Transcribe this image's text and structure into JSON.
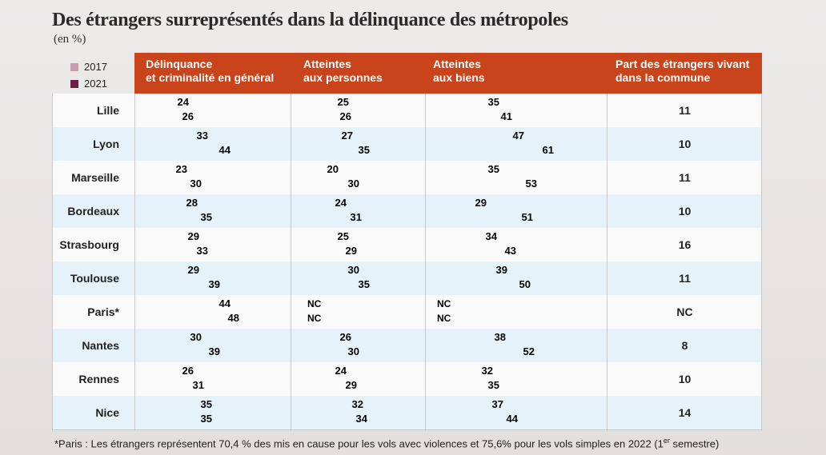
{
  "title": "Des étrangers surreprésentés dans la délinquance des métropoles",
  "subtitle": "(en %)",
  "colors": {
    "y2017": "#c89bb1",
    "y2021": "#6b1f42",
    "header": "#c9431b"
  },
  "legend": [
    "2017",
    "2021"
  ],
  "headers": [
    "Délinquance\net criminalité en général",
    "Atteintes\naux personnes",
    "Atteintes\naux biens",
    "Part des étrangers vivant\ndans la commune"
  ],
  "chart_data": {
    "type": "bar",
    "title": "Des étrangers surreprésentés dans la délinquance des métropoles",
    "unit": "%",
    "series_names": [
      "2017",
      "2021"
    ],
    "categories": [
      "Lille",
      "Lyon",
      "Marseille",
      "Bordeaux",
      "Strasbourg",
      "Toulouse",
      "Paris*",
      "Nantes",
      "Rennes",
      "Nice"
    ],
    "groups": [
      {
        "name": "Délinquance et criminalité en général",
        "y2017": [
          24,
          33,
          23,
          28,
          29,
          29,
          44,
          30,
          26,
          35
        ],
        "y2021": [
          26,
          44,
          30,
          35,
          33,
          39,
          48,
          39,
          31,
          35
        ]
      },
      {
        "name": "Atteintes aux personnes",
        "y2017": [
          25,
          27,
          20,
          24,
          25,
          30,
          "NC",
          26,
          24,
          32
        ],
        "y2021": [
          26,
          35,
          30,
          31,
          29,
          35,
          "NC",
          30,
          29,
          34
        ]
      },
      {
        "name": "Atteintes aux biens",
        "y2017": [
          35,
          47,
          35,
          29,
          34,
          39,
          "NC",
          38,
          32,
          37
        ],
        "y2021": [
          41,
          61,
          53,
          51,
          43,
          50,
          "NC",
          52,
          35,
          44
        ]
      }
    ],
    "share_foreigners": [
      "11",
      "10",
      "11",
      "10",
      "16",
      "11",
      "NC",
      "8",
      "10",
      "14"
    ]
  },
  "footnote": {
    "text": "*Paris :  Les étrangers représentent 70,4 % des mis en cause pour les vols avec violences et 75,6% pour les vols simples en 2022 (1",
    "sup": "er",
    "tail": " semestre)"
  }
}
